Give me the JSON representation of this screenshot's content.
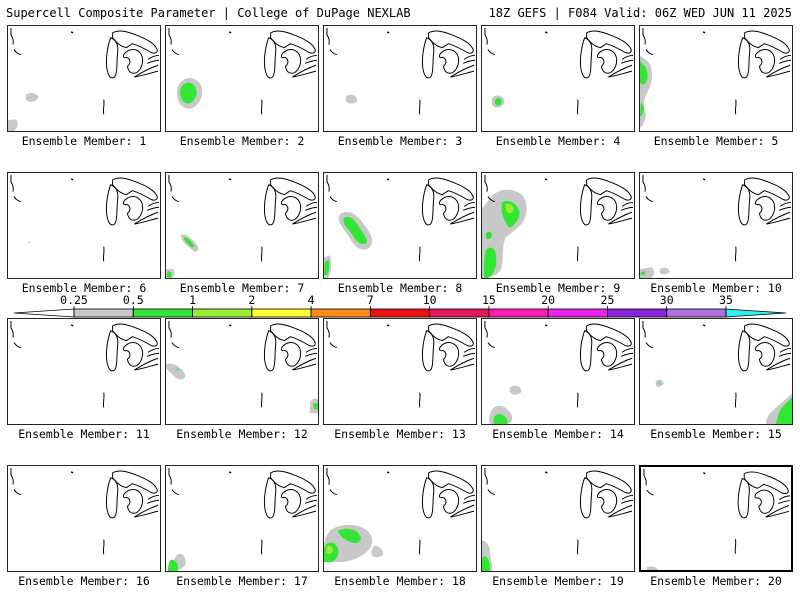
{
  "header": {
    "title_left": "Supercell Composite Parameter | College of DuPage NEXLAB",
    "title_right": "18Z GEFS | F084 Valid: 06Z WED JUN 11 2025"
  },
  "colors": {
    "gray": "#c8c8c8",
    "green": "#33e633",
    "lime": "#99ee33",
    "yellow": "#ffff33",
    "orange": "#ff8c1a",
    "red": "#ee1111",
    "crimson": "#e6185a",
    "magenta": "#ff1ab3",
    "fuchsia": "#ee22ee",
    "violet": "#8a22dd",
    "lavender": "#b070e0",
    "cyan": "#33eeee"
  },
  "colorbar": {
    "levels": [
      "0.25",
      "0.5",
      "1",
      "2",
      "4",
      "7",
      "10",
      "15",
      "20",
      "25",
      "30",
      "35"
    ],
    "segments": [
      "#c8c8c8",
      "#33e633",
      "#99ee33",
      "#ffff33",
      "#ff8c1a",
      "#ee1111",
      "#e6185a",
      "#ff1ab3",
      "#ee22ee",
      "#8a22dd",
      "#b070e0"
    ],
    "arrow_left_color": "#ffffff",
    "arrow_right_color": "#33eeee"
  },
  "members": [
    {
      "label": "Ensemble Member: 1"
    },
    {
      "label": "Ensemble Member: 2"
    },
    {
      "label": "Ensemble Member: 3"
    },
    {
      "label": "Ensemble Member: 4"
    },
    {
      "label": "Ensemble Member: 5"
    },
    {
      "label": "Ensemble Member: 6"
    },
    {
      "label": "Ensemble Member: 7"
    },
    {
      "label": "Ensemble Member: 8"
    },
    {
      "label": "Ensemble Member: 9"
    },
    {
      "label": "Ensemble Member: 10"
    },
    {
      "label": "Ensemble Member: 11"
    },
    {
      "label": "Ensemble Member: 12"
    },
    {
      "label": "Ensemble Member: 13"
    },
    {
      "label": "Ensemble Member: 14"
    },
    {
      "label": "Ensemble Member: 15"
    },
    {
      "label": "Ensemble Member: 16"
    },
    {
      "label": "Ensemble Member: 17"
    },
    {
      "label": "Ensemble Member: 18"
    },
    {
      "label": "Ensemble Member: 19"
    },
    {
      "label": "Ensemble Member: 20"
    }
  ]
}
